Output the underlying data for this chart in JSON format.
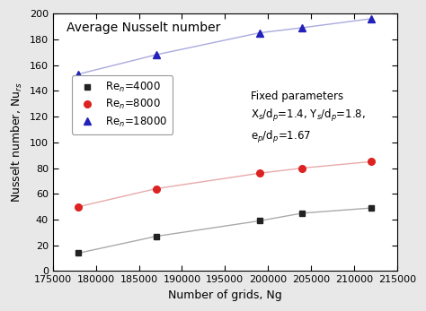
{
  "x_values": [
    178000,
    187000,
    199000,
    204000,
    212000
  ],
  "re4000": [
    14,
    27,
    39,
    45,
    49
  ],
  "re8000": [
    50,
    64,
    76,
    80,
    85
  ],
  "re18000": [
    153,
    168,
    185,
    189,
    196
  ],
  "re4000_marker_color": "#222222",
  "re8000_marker_color": "#dd2222",
  "re18000_marker_color": "#2222bb",
  "re4000_line_color": "#aaaaaa",
  "re8000_line_color": "#e8aaaa",
  "re18000_line_color": "#aaaadd",
  "title": "Average Nusselt number",
  "xlabel": "Number of grids, Ng",
  "ylabel": "Nusselt number, Nu",
  "ylabel_sub": "rs",
  "annotation_line1": "Fixed parameters",
  "annotation_line2": "X$_s$/d$_p$=1.4, Y$_s$/d$_p$=1.8,",
  "annotation_line3": "e$_p$/d$_p$=1.67",
  "xlim": [
    175000,
    215000
  ],
  "ylim": [
    0,
    200
  ],
  "yticks": [
    0,
    20,
    40,
    60,
    80,
    100,
    120,
    140,
    160,
    180,
    200
  ],
  "xticks": [
    175000,
    180000,
    185000,
    190000,
    195000,
    200000,
    205000,
    210000,
    215000
  ],
  "xtick_labels": [
    "175000",
    "180000",
    "185000",
    "190000",
    "195000",
    "200000",
    "205000",
    "210000",
    "215000"
  ],
  "legend_labels": [
    "Re$_n$=4000",
    "Re$_n$=8000",
    "Re$_n$=18000"
  ],
  "bg_color": "#ffffff",
  "outer_bg": "#e8e8e8",
  "title_fontsize": 10,
  "label_fontsize": 9,
  "tick_fontsize": 8,
  "legend_fontsize": 8.5,
  "annot_fontsize": 8.5
}
